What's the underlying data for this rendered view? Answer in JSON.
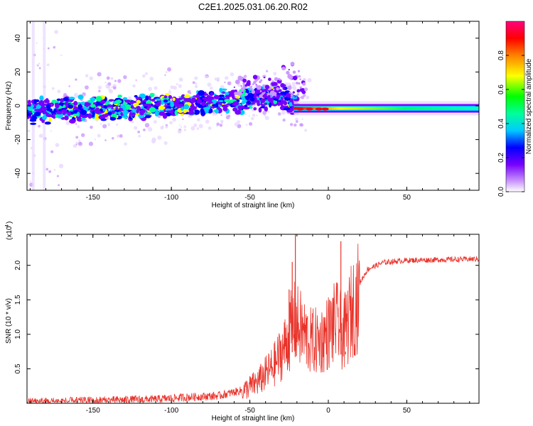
{
  "page_title": "C2E1.2025.031.06.20.R02",
  "chart_data": [
    {
      "type": "heatmap",
      "panel": "spectrogram",
      "xlabel": "Height of straight line (km)",
      "ylabel": "Frequency (Hz)",
      "xlim": [
        -192,
        96
      ],
      "ylim": [
        -50,
        50
      ],
      "xticks": [
        -150,
        -100,
        -50,
        0,
        50
      ],
      "yticks": [
        -40,
        -20,
        0,
        20,
        40
      ],
      "x_tick_labels": [
        "-150",
        "-100",
        "-50",
        "0",
        "50"
      ],
      "y_tick_labels": [
        "-40",
        "-20",
        "0",
        "20",
        "40"
      ],
      "ridge_center_hz": [
        {
          "x": -190,
          "y": -3
        },
        {
          "x": -160,
          "y": -2
        },
        {
          "x": -130,
          "y": -1
        },
        {
          "x": -100,
          "y": 0
        },
        {
          "x": -80,
          "y": 2
        },
        {
          "x": -60,
          "y": 3
        },
        {
          "x": -40,
          "y": 5
        },
        {
          "x": -30,
          "y": 6
        },
        {
          "x": -25,
          "y": 3
        },
        {
          "x": -20,
          "y": 1
        },
        {
          "x": -10,
          "y": 0
        },
        {
          "x": 0,
          "y": -2
        },
        {
          "x": 10,
          "y": -1
        },
        {
          "x": 30,
          "y": -1
        },
        {
          "x": 60,
          "y": -2
        },
        {
          "x": 96,
          "y": -2
        }
      ],
      "colorbar": {
        "label": "Normalized spectral amplitude",
        "range": [
          0,
          1
        ],
        "ticks": [
          0.0,
          0.2,
          0.4,
          0.6,
          0.8
        ],
        "tick_labels": [
          "0.0",
          "0.2",
          "0.4",
          "0.6",
          "0.8"
        ],
        "colors": [
          "#ffffff",
          "#cc99ff",
          "#7700ff",
          "#0000ff",
          "#00ccff",
          "#00ff99",
          "#00ff00",
          "#ffff00",
          "#ff8000",
          "#ff0000",
          "#ff0080"
        ]
      }
    },
    {
      "type": "line",
      "panel": "snr",
      "xlabel": "Height of straight line (km)",
      "ylabel": "SNR (10 * v/v)",
      "multiplier_label": "(x10",
      "multiplier_exp": "4",
      "multiplier_close": ")",
      "xlim": [
        -192,
        96
      ],
      "ylim": [
        0,
        2.45
      ],
      "xticks": [
        -150,
        -100,
        -50,
        0,
        50
      ],
      "yticks": [
        0.5,
        1.0,
        1.5,
        2.0
      ],
      "x_tick_labels": [
        "-150",
        "-100",
        "-50",
        "0",
        "50"
      ],
      "y_tick_labels": [
        "0.5",
        "1.0",
        "1.5",
        "2.0"
      ],
      "series_color": "#e8332a",
      "envelope": [
        {
          "x": -192,
          "y": 0.03
        },
        {
          "x": -150,
          "y": 0.05
        },
        {
          "x": -110,
          "y": 0.07
        },
        {
          "x": -90,
          "y": 0.1
        },
        {
          "x": -70,
          "y": 0.12
        },
        {
          "x": -55,
          "y": 0.2
        },
        {
          "x": -45,
          "y": 0.35
        },
        {
          "x": -35,
          "y": 0.6
        },
        {
          "x": -28,
          "y": 0.9
        },
        {
          "x": -22,
          "y": 1.3
        },
        {
          "x": -18,
          "y": 1.2
        },
        {
          "x": -12,
          "y": 1.0
        },
        {
          "x": -5,
          "y": 1.0
        },
        {
          "x": 0,
          "y": 1.15
        },
        {
          "x": 5,
          "y": 1.3
        },
        {
          "x": 10,
          "y": 1.1
        },
        {
          "x": 15,
          "y": 1.5
        },
        {
          "x": 20,
          "y": 1.75
        },
        {
          "x": 25,
          "y": 1.95
        },
        {
          "x": 35,
          "y": 2.05
        },
        {
          "x": 50,
          "y": 2.08
        },
        {
          "x": 96,
          "y": 2.1
        }
      ],
      "peaks": [
        {
          "x": -21,
          "y": 2.45
        },
        {
          "x": -23,
          "y": 2.05
        },
        {
          "x": -25,
          "y": 1.65
        },
        {
          "x": 8,
          "y": 2.35
        },
        {
          "x": 11,
          "y": 0.75
        }
      ]
    }
  ]
}
